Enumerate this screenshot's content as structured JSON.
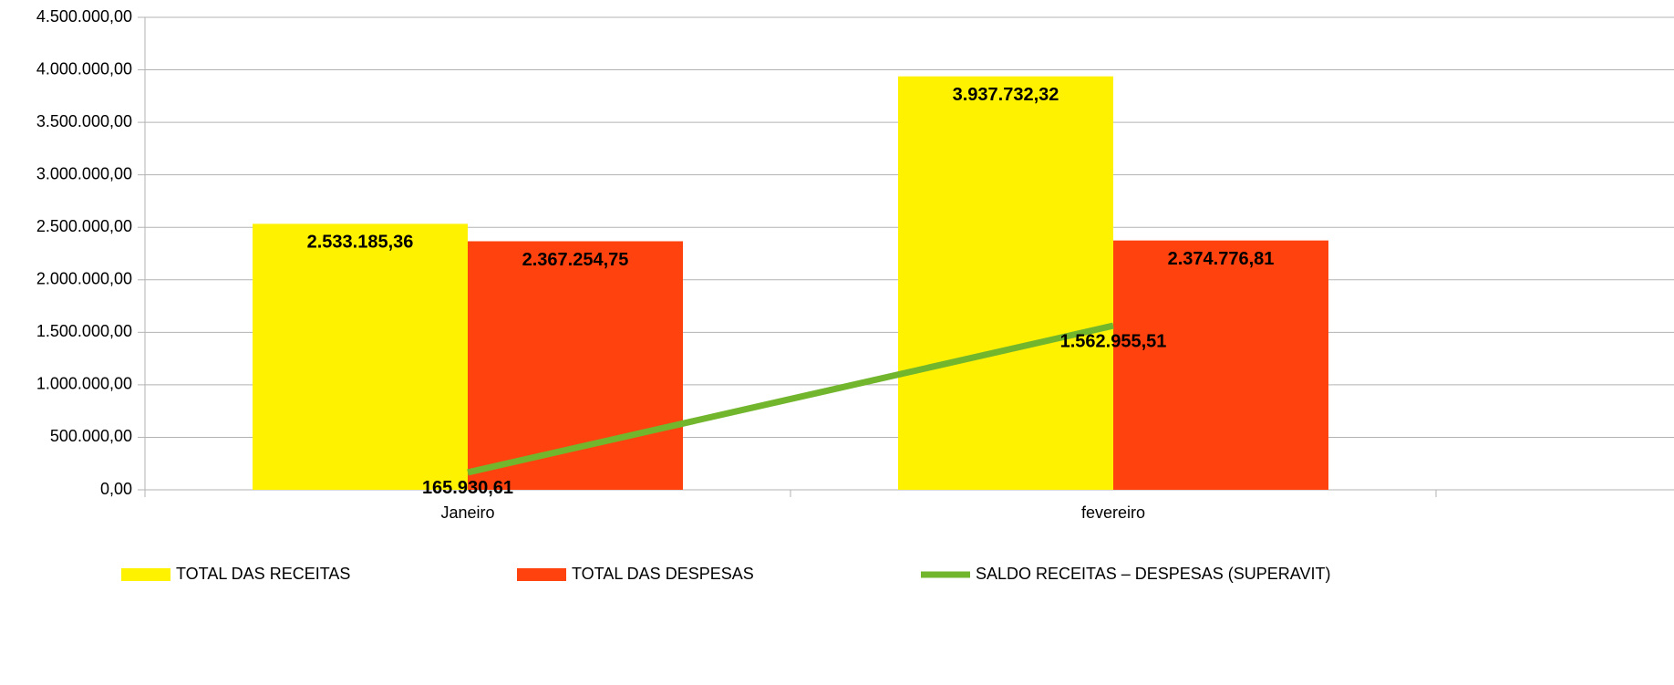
{
  "chart_data": {
    "type": "bar",
    "categories": [
      "Janeiro",
      "fevereiro"
    ],
    "series": [
      {
        "name": "TOTAL DAS RECEITAS",
        "color": "#fff200",
        "type": "bar",
        "values": [
          2533185.36,
          3937732.32
        ],
        "value_labels": [
          "2.533.185,36",
          "3.937.732,32"
        ]
      },
      {
        "name": "TOTAL DAS DESPESAS",
        "color": "#ff420e",
        "type": "bar",
        "values": [
          2367254.75,
          2374776.81
        ],
        "value_labels": [
          "2.367.254,75",
          "2.374.776,81"
        ]
      },
      {
        "name": "SALDO RECEITAS – DESPESAS (SUPERAVIT)",
        "color": "#72b62e",
        "type": "line",
        "values": [
          165930.61,
          1562955.51
        ],
        "value_labels": [
          "165.930,61",
          "1.562.955,51"
        ]
      }
    ],
    "ylim": [
      0,
      4500000
    ],
    "yticks": [
      {
        "value": 0,
        "label": "0,00"
      },
      {
        "value": 500000,
        "label": "500.000,00"
      },
      {
        "value": 1000000,
        "label": "1.000.000,00"
      },
      {
        "value": 1500000,
        "label": "1.500.000,00"
      },
      {
        "value": 2000000,
        "label": "2.000.000,00"
      },
      {
        "value": 2500000,
        "label": "2.500.000,00"
      },
      {
        "value": 3000000,
        "label": "3.000.000,00"
      },
      {
        "value": 3500000,
        "label": "3.500.000,00"
      },
      {
        "value": 4000000,
        "label": "4.000.000,00"
      },
      {
        "value": 4500000,
        "label": "4.500.000,00"
      }
    ],
    "grid": true,
    "legend": "bottom"
  }
}
